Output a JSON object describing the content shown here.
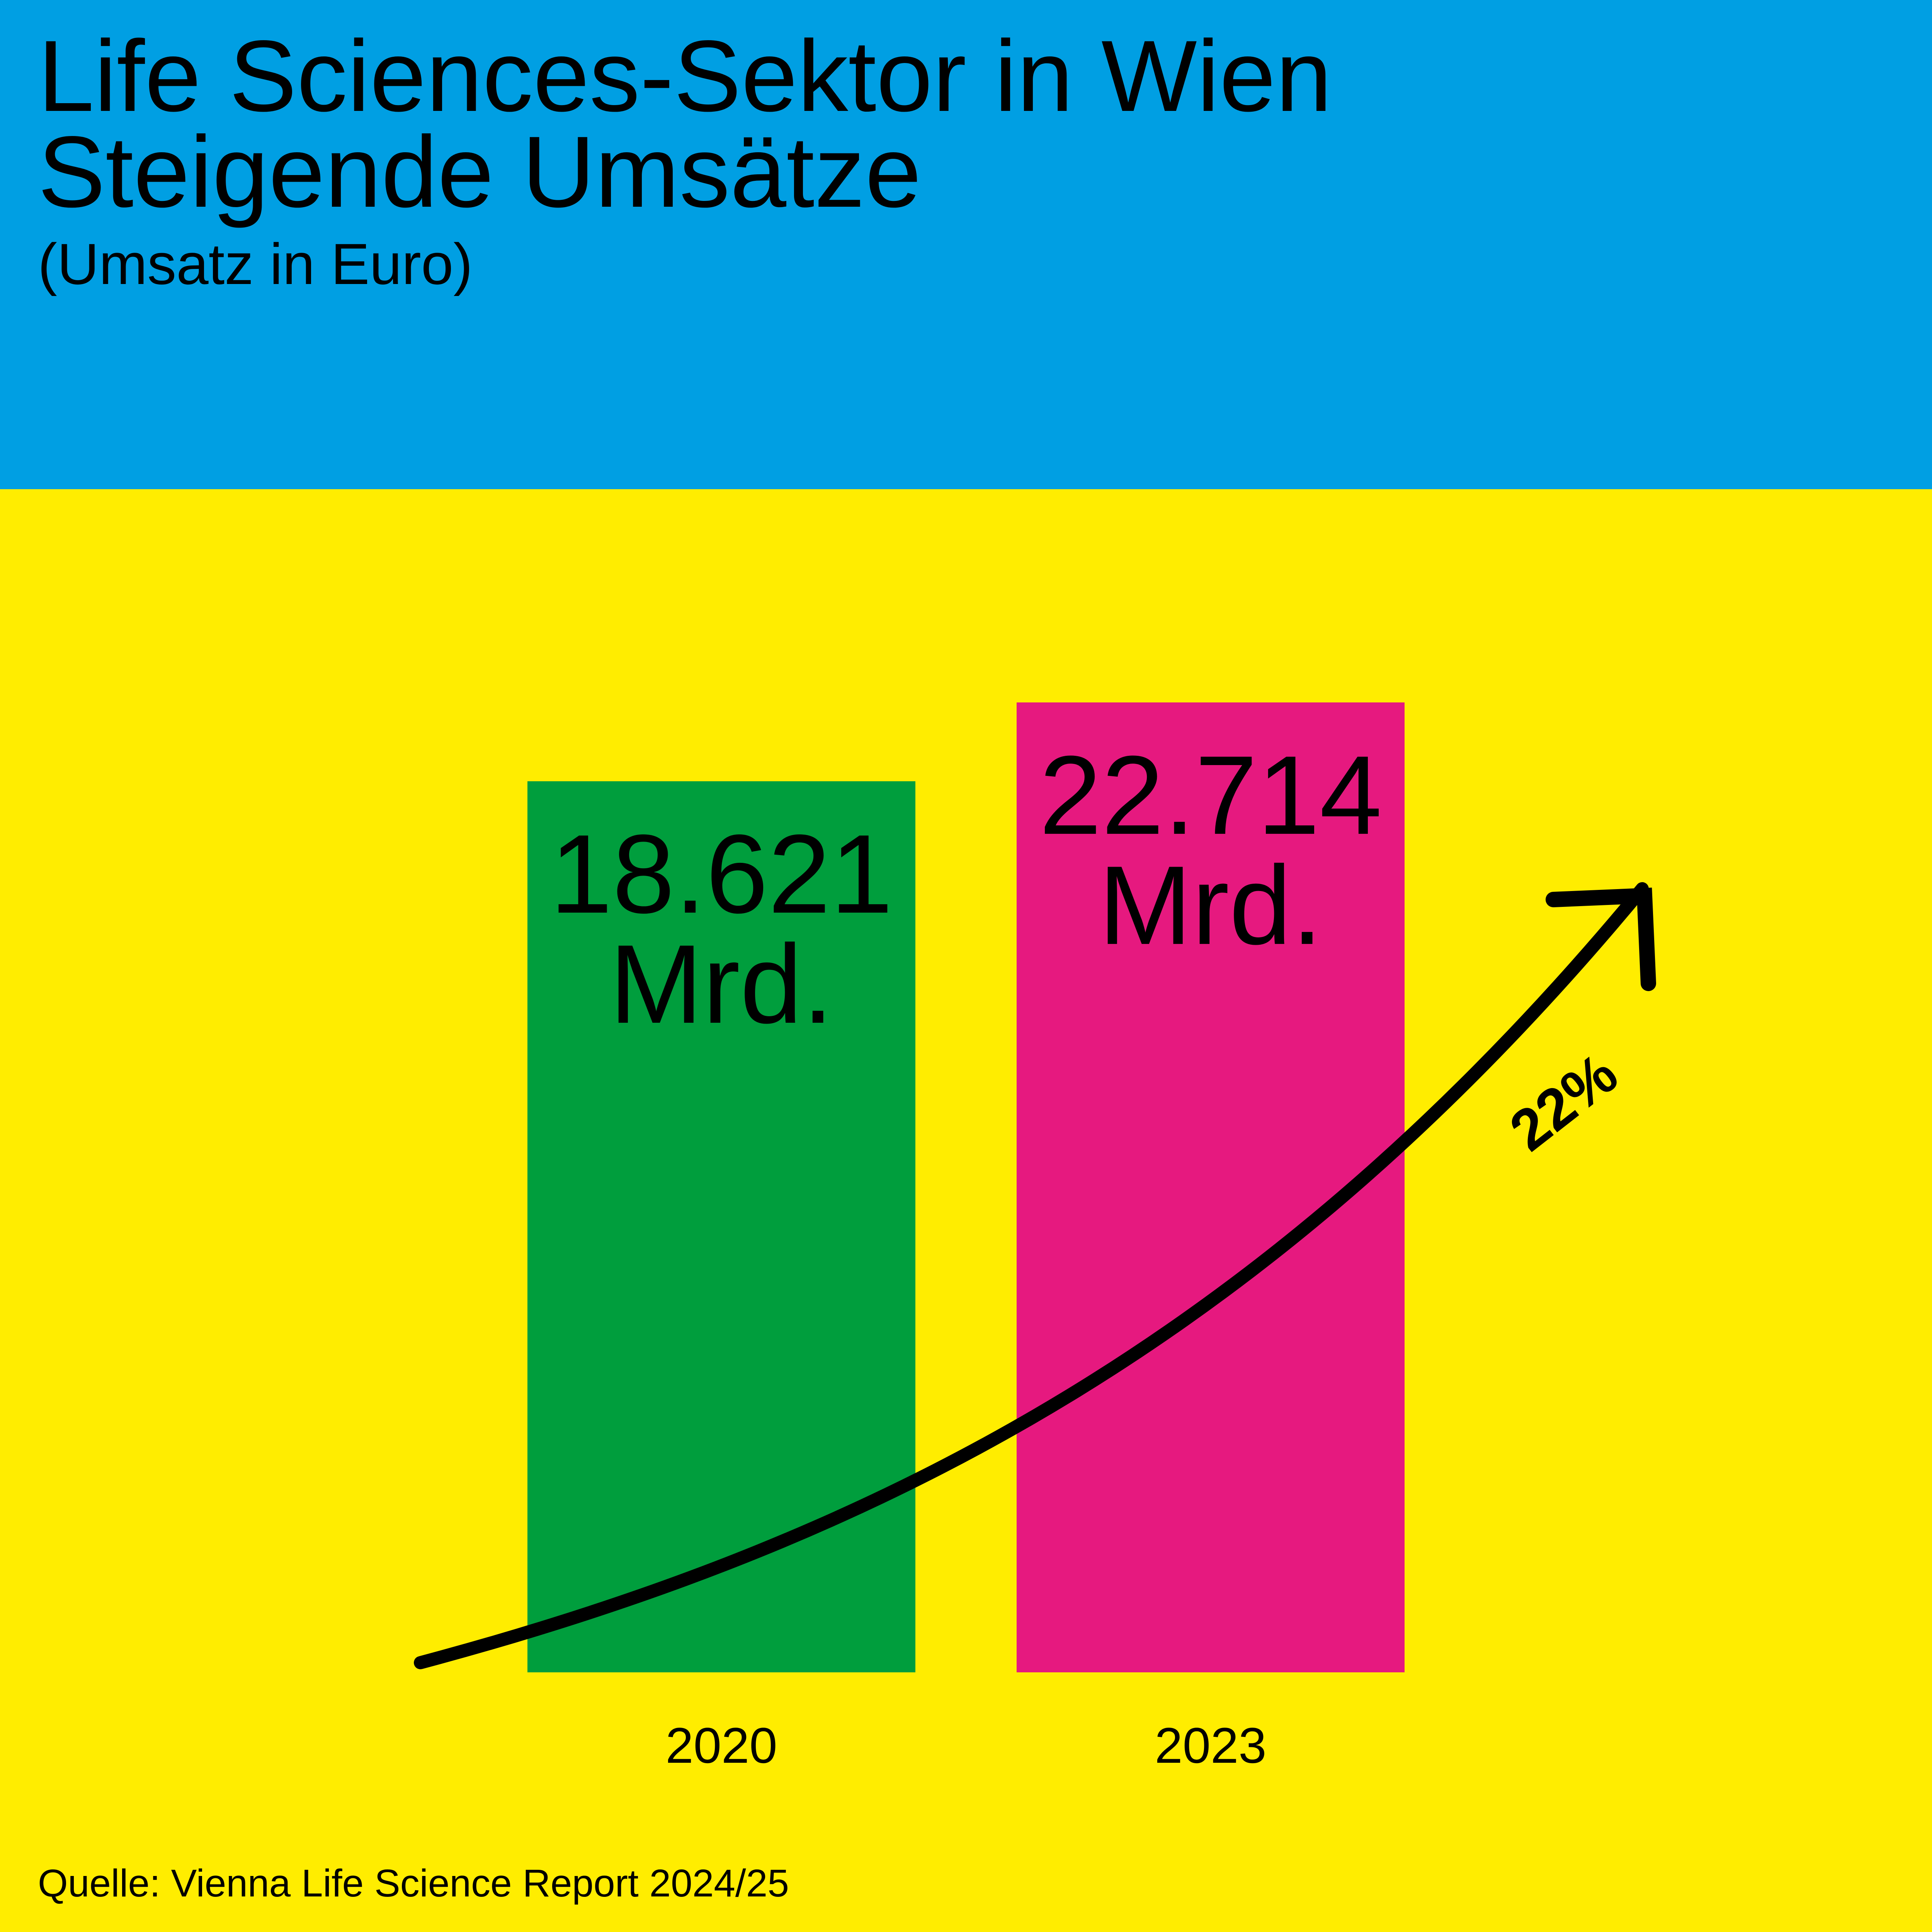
{
  "header": {
    "title_line1": "Life Sciences-Sektor in Wien",
    "title_line2": "Steigende Umsätze",
    "subtitle": "(Umsatz in Euro)"
  },
  "colors": {
    "header_background": "#009FE3",
    "chart_background": "#FFED00",
    "bar_2020": "#009E3D",
    "bar_2023": "#E6197F",
    "arrow": "#000000"
  },
  "chart_data": {
    "type": "bar",
    "categories": [
      "2020",
      "2023"
    ],
    "values": [
      18.621,
      22.714
    ],
    "value_labels": [
      {
        "number": "18.621",
        "unit": "Mrd."
      },
      {
        "number": "22.714",
        "unit": "Mrd."
      }
    ],
    "title": "Life Sciences-Sektor in Wien / Steigende Umsätze",
    "ylabel": "(Umsatz in Euro)",
    "grid": false,
    "annotation": {
      "type": "growth-arrow",
      "label": "22%"
    }
  },
  "footer": {
    "source": "Quelle: Vienna Life Science Report 2024/25"
  }
}
